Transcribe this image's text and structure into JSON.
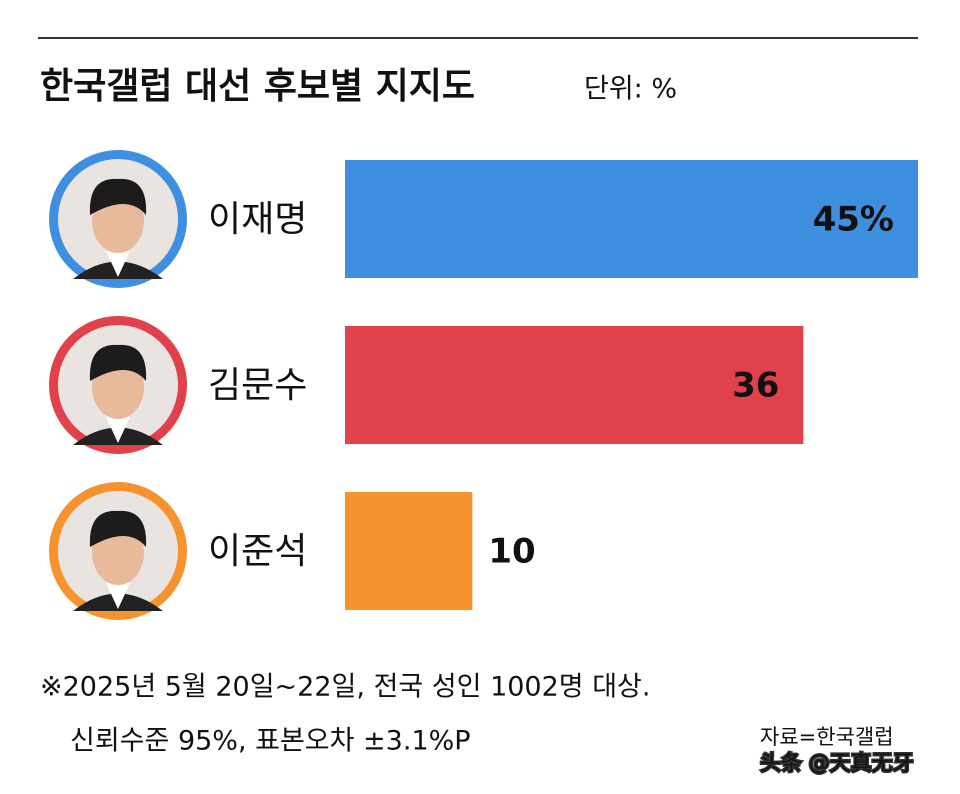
{
  "chart_data": {
    "type": "bar",
    "orientation": "horizontal",
    "title": "한국갤럽 대선 후보별 지지도",
    "subtitle": "단위: %",
    "categories": [
      "이재명",
      "김문수",
      "이준석"
    ],
    "values": [
      45,
      36,
      10
    ],
    "value_labels": [
      "45%",
      "36",
      "10"
    ],
    "colors": [
      "#3f8fe0",
      "#e0414b",
      "#f7932f"
    ],
    "notes": [
      "※2025년 5월 20일~22일, 전국 성인 1002명 대상.",
      "신뢰수준 95%, 표본오차 ±3.1%P"
    ],
    "source": "자료=한국갤럽",
    "watermark": "头条 @天真无牙"
  }
}
